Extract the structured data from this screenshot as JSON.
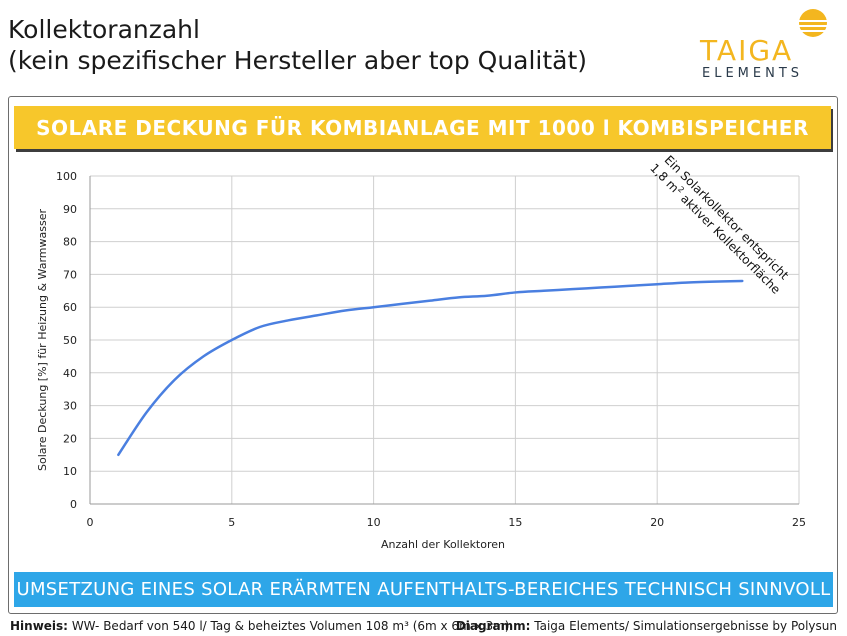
{
  "header": {
    "title_line1": "Kollektoranzahl",
    "title_line2": "(kein spezifischer Hersteller aber top Qualität)"
  },
  "logo": {
    "name": "TAIGA",
    "sub": "ELEMENTS",
    "sun_color": "#f3b61f"
  },
  "banner_top": {
    "text": "SOLARE DECKUNG FÜR KOMBIANLAGE MIT 1000 l KOMBISPEICHER",
    "color": "#f7c72b"
  },
  "banner_bottom": {
    "text": "UMSETZUNG EINES SOLAR ERÄRMTEN AUFENTHALTS-BEREICHES TECHNISCH SINNVOLL",
    "color": "#2ea6e8"
  },
  "footer": {
    "left_label": "Hinweis:",
    "left_text": "WW- Bedarf von 540 l/ Tag & beheiztes Volumen 108 m³ (6m x 6m x 3m)",
    "right_label": "Diagramm:",
    "right_text": "Taiga Elements/ Simulationsergebnisse by Polysun"
  },
  "chart_data": {
    "type": "line",
    "xlabel": "Anzahl der Kollektoren",
    "ylabel": "Solare Deckung [%]  für Heizung &  Warmwasser",
    "xlim": [
      0,
      25
    ],
    "ylim": [
      0,
      100
    ],
    "x_ticks": [
      "0",
      "5",
      "10",
      "15",
      "20",
      "25"
    ],
    "y_ticks": [
      "0",
      "10",
      "20",
      "30",
      "40",
      "50",
      "60",
      "70",
      "80",
      "90",
      "100"
    ],
    "grid": true,
    "series": [
      {
        "color": "#4a7fe0",
        "x": [
          1,
          2,
          3,
          4,
          5,
          6,
          7,
          8,
          9,
          10,
          11,
          12,
          13,
          14,
          15,
          16,
          17,
          18,
          19,
          20,
          21,
          22,
          23
        ],
        "y": [
          15,
          28,
          38,
          45,
          50,
          54,
          56,
          57.5,
          59,
          60,
          61,
          62,
          63,
          63.5,
          64.5,
          65,
          65.5,
          66,
          66.5,
          67,
          67.5,
          67.8,
          68
        ]
      }
    ],
    "annotation": {
      "line1": "Ein Solarkollektor  entspricht",
      "line2_prefix": "1,8 m",
      "line2_sup": "2",
      "line2_suffix": " aktiver Kollektorfläche"
    }
  }
}
